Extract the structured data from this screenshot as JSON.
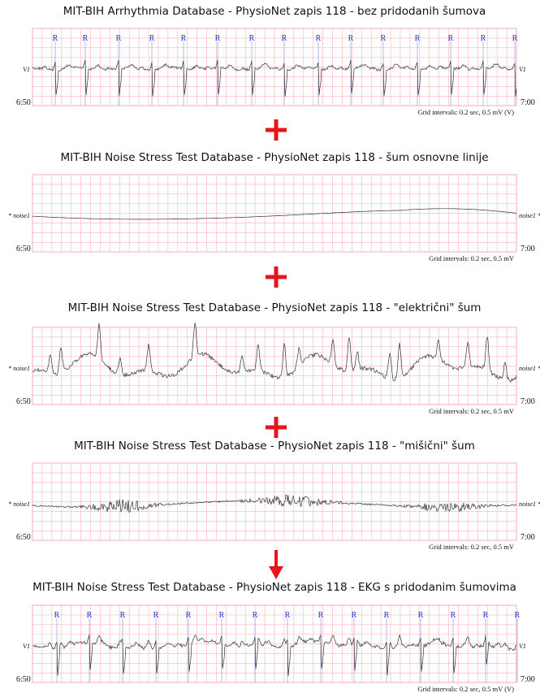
{
  "panels": [
    {
      "title": "MIT-BIH Arrhythmia Database - PhysioNet zapis 118 - bez pridodanih šumova",
      "lead_left": "V1",
      "lead_right": "V1",
      "start": "6:50",
      "end": "7:00",
      "grid_note": "Grid intervals: 0.2 sec, 0.5 mV (V)",
      "beat_labels": [
        "R",
        "R",
        "R",
        "R",
        "R",
        "R",
        "R",
        "R",
        "R",
        "R",
        "R",
        "R",
        "R",
        "R",
        "R"
      ]
    },
    {
      "title": "MIT-BIH Noise Stress Test Database - PhysioNet zapis 118 - šum osnovne linije",
      "lead_left": "* noise1",
      "lead_right": "noise1 *",
      "start": "6:50",
      "end": "7:00",
      "grid_note": "Grid intervals: 0.2 sec, 0.5 mV"
    },
    {
      "title": "MIT-BIH Noise Stress Test Database - PhysioNet zapis 118 - \"električni\" šum",
      "lead_left": "* noise1",
      "lead_right": "noise1 *",
      "start": "6:50",
      "end": "7:00",
      "grid_note": "Grid intervals: 0.2 sec, 0.5 mV"
    },
    {
      "title": "MIT-BIH Noise Stress Test Database - PhysioNet zapis 118 - \"mišični\" šum",
      "lead_left": "* noise1",
      "lead_right": "noise1 *",
      "start": "6:50",
      "end": "7:00",
      "grid_note": "Grid intervals: 0.2 sec, 0.5 mV"
    },
    {
      "title": "MIT-BIH Noise Stress Test Database - PhysioNet zapis 118 - EKG s pridodanim šumovima",
      "lead_left": "V1",
      "lead_right": "V1",
      "start": "6:50",
      "end": "7:00",
      "grid_note": "Grid intervals: 0.2 sec, 0.5 mV (V)",
      "beat_labels": [
        "R",
        "R",
        "R",
        "R",
        "R",
        "R",
        "R",
        "R",
        "R",
        "R",
        "R",
        "R",
        "R",
        "R",
        "R"
      ]
    }
  ]
}
